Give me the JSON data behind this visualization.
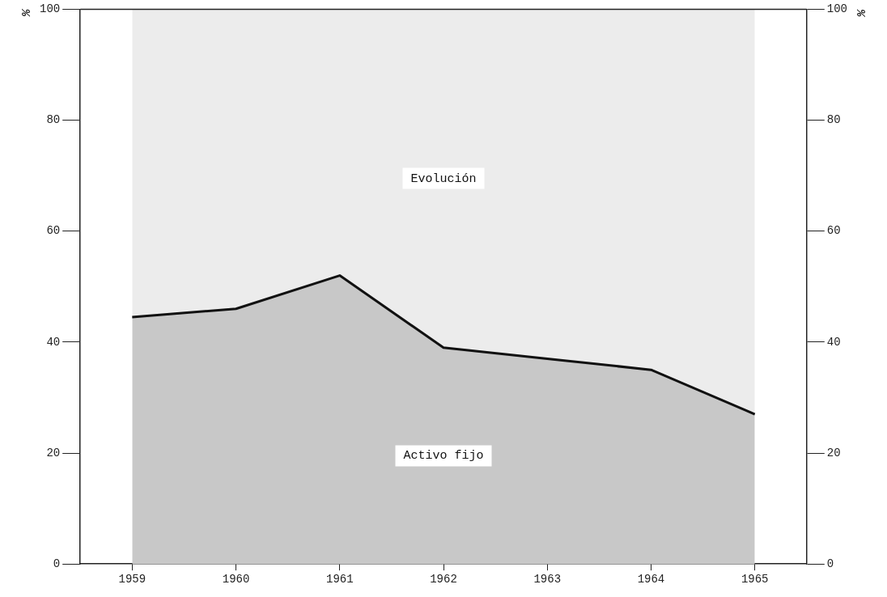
{
  "chart_data": {
    "type": "area",
    "stacked": true,
    "categories": [
      "1959",
      "1960",
      "1961",
      "1962",
      "1963",
      "1964",
      "1965"
    ],
    "series": [
      {
        "name": "Activo fijo",
        "color": "#c8c8c8",
        "values": [
          44.5,
          46,
          52,
          39,
          37,
          35,
          27
        ]
      },
      {
        "name": "Evolución",
        "color": "#ececec",
        "values": [
          55.5,
          54,
          48,
          61,
          63,
          65,
          73
        ]
      }
    ],
    "ylabel": "%",
    "y2label": "%",
    "ylim": [
      0,
      100
    ],
    "yticks": [
      0,
      20,
      40,
      60,
      80,
      100
    ],
    "y2lim": [
      0,
      100
    ],
    "y2ticks": [
      0,
      20,
      40,
      60,
      80,
      100
    ],
    "grid": false,
    "legend": false
  }
}
